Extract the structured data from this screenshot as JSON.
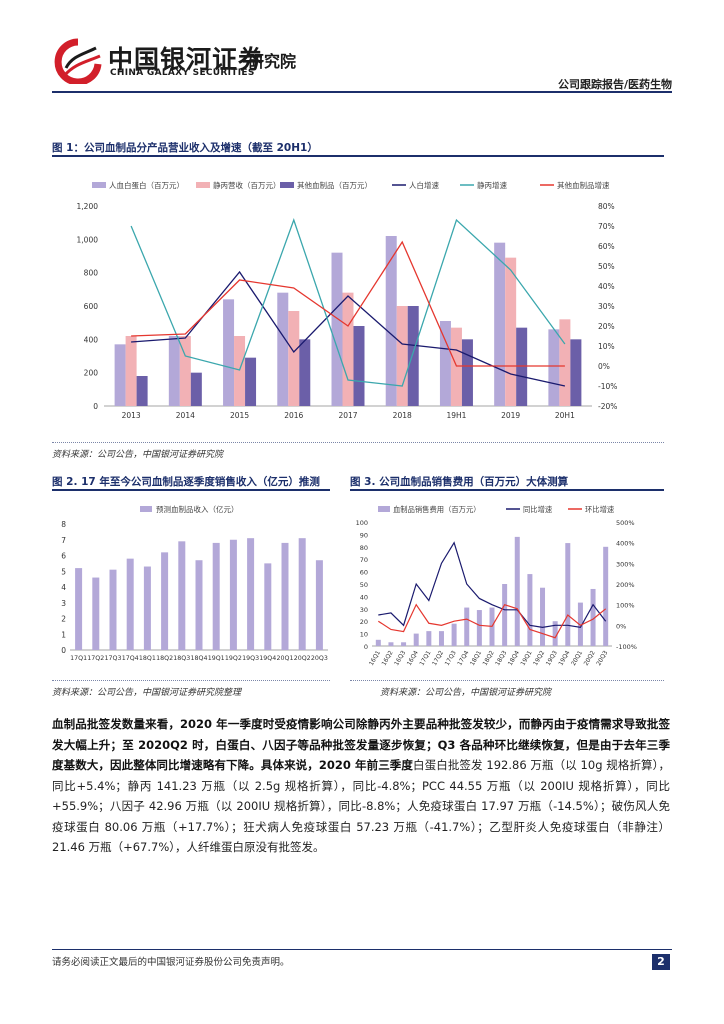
{
  "header": {
    "logo_cn": "中国银河证券",
    "logo_en": "CHINA GALAXY SECURITIES",
    "institute": "研究院",
    "report_type": "公司跟踪报告/医药生物"
  },
  "figure1": {
    "title": "图 1：公司血制品分产品营业收入及增速（截至 20H1）",
    "source": "资料来源：公司公告，中国银河证券研究院"
  },
  "figure2": {
    "title": "图 2. 17 年至今公司血制品逐季度销售收入（亿元）推测",
    "source": "资料来源：公司公告，中国银河证券研究院整理"
  },
  "figure3": {
    "title": "图 3. 公司血制品销售费用（百万元）大体测算",
    "source": "资料来源：公司公告，中国银河证券研究院"
  },
  "chart_data": [
    {
      "type": "bar",
      "title": "公司血制品分产品营业收入及增速",
      "categories": [
        "2013",
        "2014",
        "2015",
        "2016",
        "2017",
        "2018",
        "19H1",
        "2019",
        "20H1"
      ],
      "series": [
        {
          "name": "人血白蛋白（百万元）",
          "kind": "bar",
          "axis": "left",
          "values": [
            370,
            420,
            640,
            680,
            920,
            1020,
            510,
            980,
            460
          ]
        },
        {
          "name": "静丙营收（百万元）",
          "kind": "bar",
          "axis": "left",
          "values": [
            420,
            420,
            420,
            570,
            680,
            600,
            470,
            890,
            520
          ]
        },
        {
          "name": "其他血制品（百万元）",
          "kind": "bar",
          "axis": "left",
          "values": [
            180,
            200,
            290,
            400,
            480,
            600,
            400,
            470,
            400
          ]
        },
        {
          "name": "人白增速",
          "kind": "line",
          "axis": "right",
          "values": [
            12,
            14,
            47,
            7,
            35,
            11,
            8,
            -4,
            -10
          ]
        },
        {
          "name": "静丙增速",
          "kind": "line",
          "axis": "right",
          "values": [
            70,
            5,
            -2,
            73,
            -7,
            -10,
            73,
            48,
            11
          ]
        },
        {
          "name": "其他血制品增速",
          "kind": "line",
          "axis": "right",
          "values": [
            15,
            16,
            43,
            39,
            20,
            62,
            0,
            0,
            0
          ]
        }
      ],
      "legend": [
        "人血白蛋白（百万元）",
        "静丙营收（百万元）",
        "其他血制品（百万元）",
        "人白增速",
        "静丙增速",
        "其他血制品增速"
      ],
      "yleft_ticks": [
        "0",
        "200",
        "400",
        "600",
        "800",
        "1,000",
        "1,200"
      ],
      "yright_ticks": [
        "-20%",
        "-10%",
        "0%",
        "10%",
        "20%",
        "30%",
        "40%",
        "50%",
        "60%",
        "70%",
        "80%"
      ],
      "ylim_left": [
        0,
        1200
      ],
      "ylim_right": [
        -20,
        80
      ]
    },
    {
      "type": "bar",
      "title": "17 年至今公司血制品逐季度销售收入（亿元）推测",
      "categories": [
        "17Q1",
        "17Q2",
        "17Q3",
        "17Q4",
        "18Q1",
        "18Q2",
        "18Q3",
        "18Q4",
        "19Q1",
        "19Q2",
        "19Q3",
        "19Q4",
        "20Q1",
        "20Q2",
        "20Q3"
      ],
      "series": [
        {
          "name": "预测血制品收入（亿元）",
          "values": [
            5.2,
            4.6,
            5.1,
            5.8,
            5.3,
            6.2,
            6.9,
            5.7,
            6.8,
            7.0,
            7.1,
            5.5,
            6.8,
            7.1,
            5.7
          ]
        }
      ],
      "y_ticks": [
        "0",
        "1",
        "2",
        "3",
        "4",
        "5",
        "6",
        "7",
        "8"
      ],
      "ylim": [
        0,
        8
      ]
    },
    {
      "type": "bar",
      "title": "公司血制品销售费用（百万元）大体测算",
      "categories": [
        "16Q1",
        "16Q2",
        "16Q3",
        "16Q4",
        "17Q1",
        "17Q2",
        "17Q3",
        "17Q4",
        "18Q1",
        "18Q2",
        "18Q3",
        "18Q4",
        "19Q1",
        "19Q2",
        "19Q3",
        "19Q4",
        "20Q1",
        "20Q2",
        "20Q3"
      ],
      "series": [
        {
          "name": "血制品销售费用（百万元）",
          "kind": "bar",
          "axis": "left",
          "values": [
            5,
            3,
            3,
            10,
            12,
            12,
            18,
            31,
            29,
            31,
            50,
            88,
            58,
            47,
            20,
            83,
            35,
            46,
            80
          ]
        },
        {
          "name": "同比增速",
          "kind": "line",
          "axis": "right",
          "values": [
            50,
            60,
            0,
            200,
            120,
            300,
            400,
            200,
            130,
            100,
            75,
            75,
            0,
            -10,
            0,
            0,
            -10,
            100,
            20
          ]
        },
        {
          "name": "环比增速",
          "kind": "line",
          "axis": "right",
          "values": [
            20,
            -20,
            -30,
            100,
            10,
            0,
            20,
            30,
            0,
            -5,
            100,
            80,
            -20,
            -40,
            -60,
            50,
            0,
            30,
            80
          ]
        }
      ],
      "legend": [
        "血制品销售费用（百万元）",
        "同比增速",
        "环比增速"
      ],
      "yleft_ticks": [
        "0",
        "10",
        "20",
        "30",
        "40",
        "50",
        "60",
        "70",
        "80",
        "90",
        "100"
      ],
      "yright_ticks": [
        "-100%",
        "0%",
        "100%",
        "200%",
        "300%",
        "400%",
        "500%"
      ],
      "ylim_left": [
        0,
        100
      ],
      "ylim_right": [
        -100,
        500
      ]
    }
  ],
  "body": {
    "bold_text": "血制品批签发数量来看，2020 年一季度时受疫情影响公司除静丙外主要品种批签发较少，而静丙由于疫情需求导致批签发大幅上升；至 2020Q2 时，白蛋白、八因子等品种批签发量逐步恢复；Q3 各品种环比继续恢复，但是由于去年三季度基数大，因此整体同比增速略有下降。",
    "lead": "具体来说，2020 年前三季度",
    "rest": "白蛋白批签发 192.86 万瓶（以 10g 规格折算），同比+5.4%；静丙 141.23 万瓶（以 2.5g 规格折算），同比-4.8%；PCC 44.55 万瓶（以 200IU 规格折算），同比+55.9%；八因子 42.96 万瓶（以 200IU 规格折算），同比-8.8%；人免疫球蛋白 17.97 万瓶（-14.5%）；破伤风人免疫球蛋白 80.06 万瓶（+17.7%）；狂犬病人免疫球蛋白 57.23 万瓶（-41.7%）；乙型肝炎人免疫球蛋白（非静注）21.46 万瓶（+67.7%），人纤维蛋白原没有批签发。"
  },
  "footer": {
    "disclaimer": "请务必阅读正文最后的中国银河证券股份公司免责声明。",
    "page": "2"
  },
  "colors": {
    "navy": "#1c2f6b",
    "bar_light": "#b3a8d8",
    "bar_pink": "#f2b1b5",
    "bar_dark": "#6b5fa8",
    "line_navy": "#1a1a6e",
    "line_teal": "#3ba7ad",
    "line_red": "#e5372f",
    "logo_red": "#d21f2a"
  }
}
